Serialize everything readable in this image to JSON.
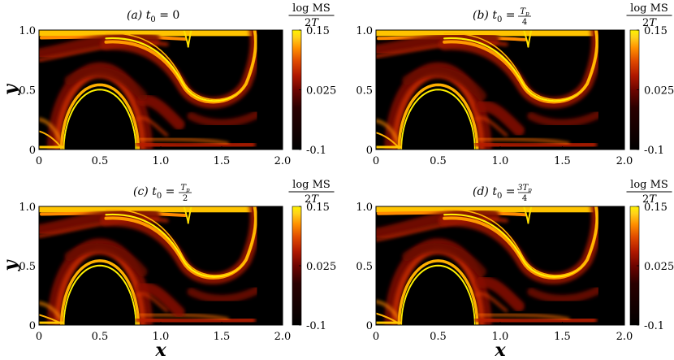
{
  "colors": {
    "background": "#000000",
    "colormap": [
      "#000000",
      "#2a0000",
      "#6e0400",
      "#b01800",
      "#e04a00",
      "#ff9000",
      "#ffd21a",
      "#fff200"
    ],
    "text": "#000000"
  },
  "figure": {
    "x_axis_label": "x",
    "y_axis_label": "y",
    "colorbar_label_top": "log MS",
    "colorbar_label_bottom": "2T"
  },
  "chart_data": [
    {
      "type": "heatmap",
      "panel": "a",
      "title_prefix": "(a)",
      "title_var": "t",
      "title_sub": "0",
      "title_rhs": "= 0",
      "title_rhs_num": "",
      "title_rhs_den": "",
      "xlabel": "",
      "ylabel": "y",
      "xlim": [
        0,
        2.0
      ],
      "ylim": [
        0,
        1.0
      ],
      "xticks": [
        "0",
        "0.5",
        "1.0",
        "1.5",
        "2.0"
      ],
      "yticks": [
        "0",
        "0.5",
        "1.0"
      ],
      "colorbar": {
        "min": -0.1,
        "max": 0.15,
        "ticks": [
          "0.15",
          "0.025",
          "-0.1"
        ]
      },
      "phase": 0.0
    },
    {
      "type": "heatmap",
      "panel": "b",
      "title_prefix": "(b)",
      "title_var": "t",
      "title_sub": "0",
      "title_rhs": "=",
      "title_rhs_num": "T_p",
      "title_rhs_den": "4",
      "xlabel": "",
      "ylabel": "",
      "xlim": [
        0,
        2.0
      ],
      "ylim": [
        0,
        1.0
      ],
      "xticks": [
        "0",
        "0.5",
        "1.0",
        "1.5",
        "2.0"
      ],
      "yticks": [
        "0",
        "0.5",
        "1.0"
      ],
      "colorbar": {
        "min": -0.1,
        "max": 0.15,
        "ticks": [
          "0.15",
          "0.025",
          "-0.1"
        ]
      },
      "phase": 0.25
    },
    {
      "type": "heatmap",
      "panel": "c",
      "title_prefix": "(c)",
      "title_var": "t",
      "title_sub": "0",
      "title_rhs": "=",
      "title_rhs_num": "T_p",
      "title_rhs_den": "2",
      "xlabel": "x",
      "ylabel": "y",
      "xlim": [
        0,
        2.0
      ],
      "ylim": [
        0,
        1.0
      ],
      "xticks": [
        "0",
        "0.5",
        "1.0",
        "1.5",
        "2.0"
      ],
      "yticks": [
        "0",
        "0.5",
        "1.0"
      ],
      "colorbar": {
        "min": -0.1,
        "max": 0.15,
        "ticks": [
          "0.15",
          "0.025",
          "-0.1"
        ]
      },
      "phase": 0.5
    },
    {
      "type": "heatmap",
      "panel": "d",
      "title_prefix": "(d)",
      "title_var": "t",
      "title_sub": "0",
      "title_rhs": "=",
      "title_rhs_num": "3T_p",
      "title_rhs_den": "4",
      "xlabel": "x",
      "ylabel": "",
      "xlim": [
        0,
        2.0
      ],
      "ylim": [
        0,
        1.0
      ],
      "xticks": [
        "0",
        "0.5",
        "1.0",
        "1.5",
        "2.0"
      ],
      "yticks": [
        "0",
        "0.5",
        "1.0"
      ],
      "colorbar": {
        "min": -0.1,
        "max": 0.15,
        "ticks": [
          "0.15",
          "0.025",
          "-0.1"
        ]
      },
      "phase": 0.75
    }
  ]
}
